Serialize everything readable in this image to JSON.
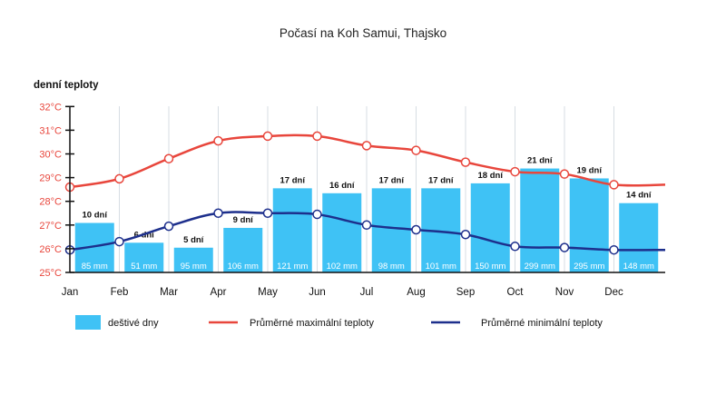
{
  "chart_data": {
    "type": "bar+line",
    "title": "Počasí na Koh Samui, Thajsko",
    "ylabel": "denní teploty",
    "categories": [
      "Jan",
      "Feb",
      "Mar",
      "Apr",
      "May",
      "Jun",
      "Jul",
      "Aug",
      "Sep",
      "Oct",
      "Nov",
      "Dec"
    ],
    "ylim": [
      25,
      32
    ],
    "y_ticks": [
      "25°C",
      "26°C",
      "27°C",
      "28°C",
      "29°C",
      "30°C",
      "31°C",
      "32°C"
    ],
    "grid": "vertical",
    "legend_position": "bottom",
    "rain_days": {
      "name": "deštivé dny",
      "color": "#3fc2f5",
      "values": [
        10,
        6,
        5,
        9,
        17,
        16,
        17,
        17,
        18,
        21,
        19,
        14
      ],
      "labels": [
        "10 dní",
        "6 dní",
        "5 dní",
        "9 dní",
        "17 dní",
        "16 dní",
        "17 dní",
        "17 dní",
        "18 dní",
        "21 dní",
        "19 dní",
        "14 dní"
      ],
      "rainfall": [
        "85 mm",
        "51 mm",
        "95 mm",
        "106 mm",
        "121 mm",
        "102 mm",
        "98 mm",
        "101 mm",
        "150 mm",
        "299 mm",
        "295 mm",
        "148 mm"
      ]
    },
    "series": [
      {
        "name": "Průměrné maximální teploty",
        "color": "#e8463c",
        "values": [
          28.6,
          28.95,
          29.8,
          30.55,
          30.75,
          30.75,
          30.35,
          30.15,
          29.65,
          29.25,
          29.15,
          28.7
        ]
      },
      {
        "name": "Průměrné minimální teploty",
        "color": "#1d2f8c",
        "values": [
          25.95,
          26.3,
          26.95,
          27.5,
          27.5,
          27.45,
          27.0,
          26.8,
          26.6,
          26.1,
          26.05,
          25.95
        ]
      }
    ]
  }
}
